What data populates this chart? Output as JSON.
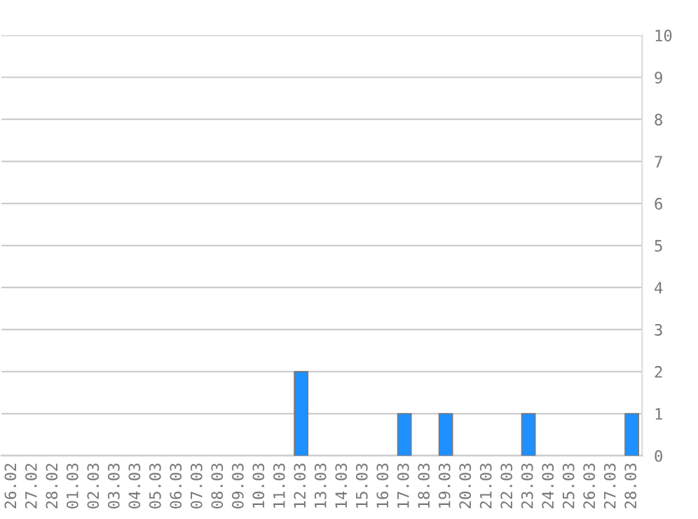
{
  "chart_data": {
    "type": "bar",
    "categories": [
      "26.02",
      "27.02",
      "28.02",
      "01.03",
      "02.03",
      "03.03",
      "04.03",
      "05.03",
      "06.03",
      "07.03",
      "08.03",
      "09.03",
      "10.03",
      "11.03",
      "12.03",
      "13.03",
      "14.03",
      "15.03",
      "16.03",
      "17.03",
      "18.03",
      "19.03",
      "20.03",
      "21.03",
      "22.03",
      "23.03",
      "24.03",
      "25.03",
      "26.03",
      "27.03",
      "28.03"
    ],
    "values": [
      0,
      0,
      0,
      0,
      0,
      0,
      0,
      0,
      0,
      0,
      0,
      0,
      0,
      0,
      2,
      0,
      0,
      0,
      0,
      1,
      0,
      1,
      0,
      0,
      0,
      1,
      0,
      0,
      0,
      0,
      1
    ],
    "color": "#1e90ff",
    "ylim": [
      0,
      10
    ],
    "yticks": [
      0,
      1,
      2,
      3,
      4,
      5,
      6,
      7,
      8,
      9,
      10
    ],
    "grid": "y"
  }
}
